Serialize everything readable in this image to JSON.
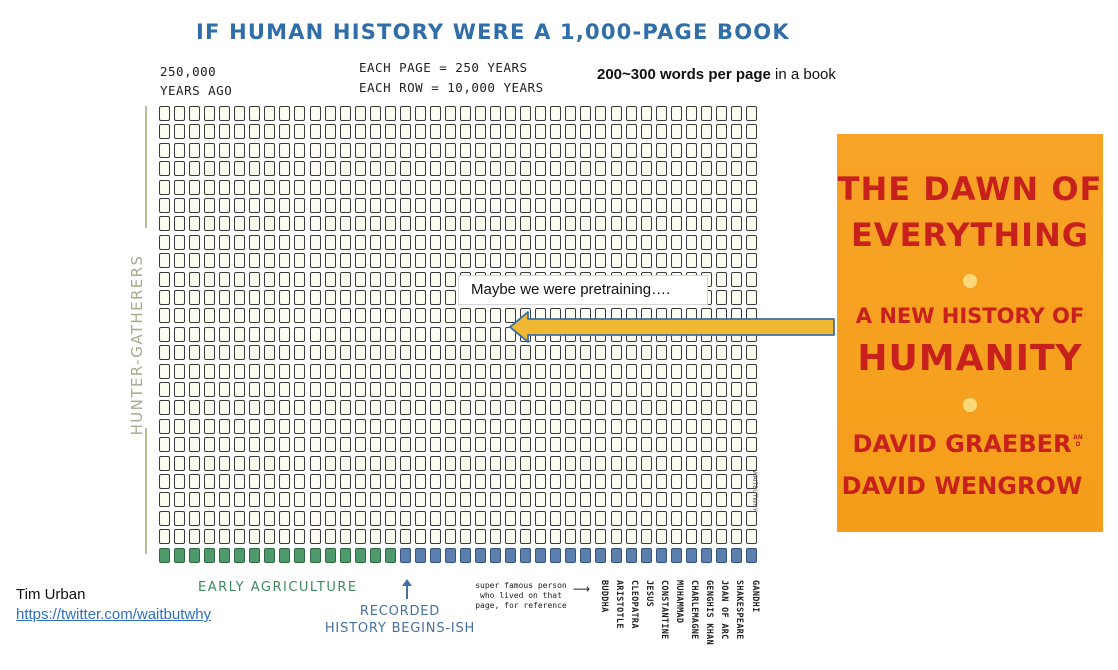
{
  "chart": {
    "title": "IF HUMAN HISTORY WERE A 1,000-PAGE BOOK",
    "start_label_line1": "250,000",
    "start_label_line2": "YEARS AGO",
    "scale_line1": "EACH PAGE = 250 YEARS",
    "scale_line2": "EACH ROW = 10,000 YEARS",
    "side_label": "HUNTER-GATHERERS",
    "agriculture_label": "EARLY AGRICULTURE",
    "recorded_label_line1": "RECORDED",
    "recorded_label_line2": "HISTORY BEGINS-ISH",
    "famous_note_line1": "super famous person",
    "famous_note_line2": "who lived on that",
    "famous_note_line3": "page, for reference",
    "people": [
      "BUDDHA",
      "ARISTOTLE",
      "CLEOPATRA",
      "JESUS",
      "CONSTANTINE",
      "MUHAMMAD",
      "CHARLEMAGNE",
      "GENGHIS KHAN",
      "JOAN OF ARC",
      "SHAKESPEARE",
      "GANDHI"
    ],
    "signature": "WAITBUTWHY",
    "rows": 25,
    "columns": 40,
    "last_row_agriculture_pages": 16,
    "last_row_history_pages": 24
  },
  "words_note": {
    "bold": "200~300 words per page",
    "rest": " in a book"
  },
  "callout": "Maybe we were pretraining….",
  "book": {
    "title_line1": "THE DAWN OF",
    "title_line2": "EVERYTHING",
    "subtitle_line1": "A NEW HISTORY OF",
    "subtitle_line2": "HUMANITY",
    "author1": "DAVID GRAEBER",
    "and": "AND",
    "author2": "DAVID WENGROW",
    "bg_color": "#f5a020",
    "text_color": "#c8201d"
  },
  "credit": {
    "author": "Tim Urban",
    "link": "https://twitter.com/waitbutwhy"
  },
  "colors": {
    "title": "#2f6ea8",
    "agriculture": "#4f9a6c",
    "history": "#5d7fae",
    "arrow": "#f0b830"
  }
}
